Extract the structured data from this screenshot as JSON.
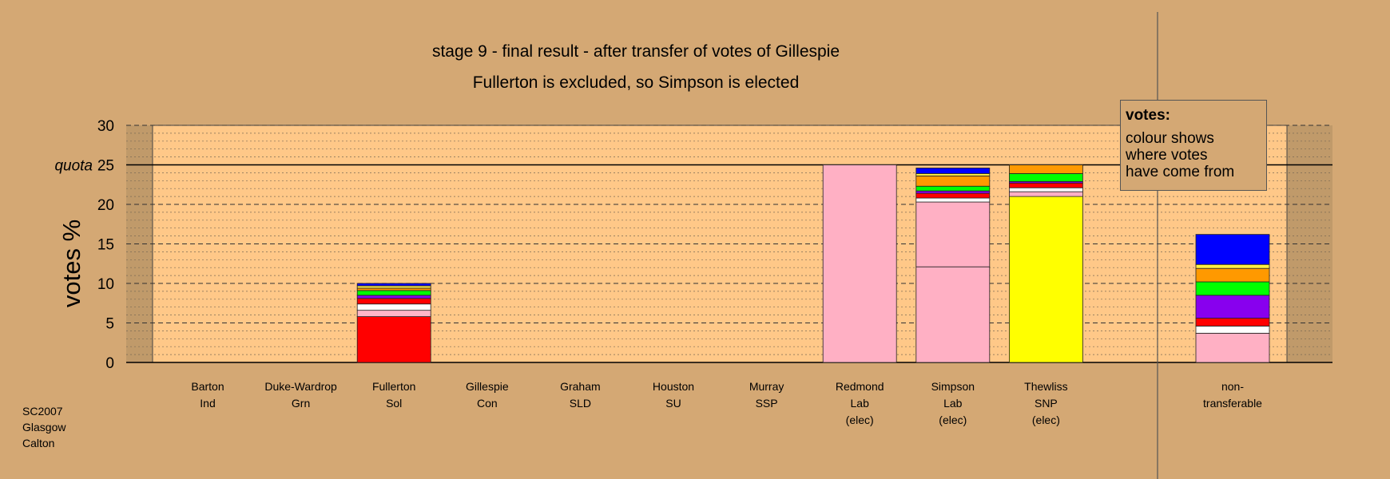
{
  "chart_data": {
    "type": "bar",
    "stacked": true,
    "title": "stage 9 - final result - after transfer of votes of Gillespie",
    "subtitle": "Fullerton is excluded, so Simpson is elected",
    "ylabel": "votes %",
    "ylim": [
      0,
      30
    ],
    "yticks": [
      "0",
      "5",
      "10",
      "15",
      "20",
      "25",
      "30"
    ],
    "quota": 25,
    "quota_label": "quota",
    "grid": true,
    "legend_position": "top-right",
    "categories": [
      {
        "lines": [
          "Barton",
          "Ind"
        ],
        "segments": []
      },
      {
        "lines": [
          "Duke-Wardrop",
          "Grn"
        ],
        "segments": []
      },
      {
        "lines": [
          "Fullerton",
          "Sol"
        ],
        "segments": [
          {
            "value": 5.8,
            "color": "#ff0000"
          },
          {
            "value": 0.8,
            "color": "#ffb6c8"
          },
          {
            "value": 0.8,
            "color": "#ffffff"
          },
          {
            "value": 0.7,
            "color": "#ff0000"
          },
          {
            "value": 0.4,
            "color": "#8800ee"
          },
          {
            "value": 0.6,
            "color": "#00ff00"
          },
          {
            "value": 0.3,
            "color": "#ff9900"
          },
          {
            "value": 0.3,
            "color": "#ffee44"
          },
          {
            "value": 0.3,
            "color": "#0000ff"
          }
        ]
      },
      {
        "lines": [
          "Gillespie",
          "Con"
        ],
        "segments": []
      },
      {
        "lines": [
          "Graham",
          "SLD"
        ],
        "segments": []
      },
      {
        "lines": [
          "Houston",
          "SU"
        ],
        "segments": []
      },
      {
        "lines": [
          "Murray",
          "SSP"
        ],
        "segments": []
      },
      {
        "lines": [
          "Redmond",
          "Lab",
          "(elec)"
        ],
        "segments": [
          {
            "value": 25.0,
            "color": "#ffb0c4"
          }
        ]
      },
      {
        "lines": [
          "Simpson",
          "Lab",
          "(elec)"
        ],
        "segments": [
          {
            "value": 12.1,
            "color": "#ffb0c4"
          },
          {
            "value": 8.2,
            "color": "#ffb0c4"
          },
          {
            "value": 0.5,
            "color": "#ffffff"
          },
          {
            "value": 0.6,
            "color": "#ff0000"
          },
          {
            "value": 0.3,
            "color": "#8800ee"
          },
          {
            "value": 0.6,
            "color": "#00ff00"
          },
          {
            "value": 1.3,
            "color": "#ff9900"
          },
          {
            "value": 0.3,
            "color": "#ffee44"
          },
          {
            "value": 0.7,
            "color": "#0000ff"
          }
        ]
      },
      {
        "lines": [
          "Thewliss",
          "SNP",
          "(elec)"
        ],
        "segments": [
          {
            "value": 21.0,
            "color": "#ffff00"
          },
          {
            "value": 0.6,
            "color": "#ffb0c4"
          },
          {
            "value": 0.5,
            "color": "#ffffff"
          },
          {
            "value": 0.6,
            "color": "#ff0000"
          },
          {
            "value": 0.2,
            "color": "#8800ee"
          },
          {
            "value": 1.0,
            "color": "#00ff00"
          },
          {
            "value": 1.1,
            "color": "#ff9900"
          }
        ]
      },
      {
        "lines": [
          "non-",
          "transferable"
        ],
        "separate": true,
        "segments": [
          {
            "value": 3.7,
            "color": "#ffb0c4"
          },
          {
            "value": 0.9,
            "color": "#ffffff"
          },
          {
            "value": 1.0,
            "color": "#ff0000"
          },
          {
            "value": 2.9,
            "color": "#8800ee"
          },
          {
            "value": 1.7,
            "color": "#00ff00"
          },
          {
            "value": 1.7,
            "color": "#ff9900"
          },
          {
            "value": 0.5,
            "color": "#ffee44"
          },
          {
            "value": 3.8,
            "color": "#0000ff"
          }
        ]
      }
    ]
  },
  "legend": {
    "title": "votes:",
    "lines": [
      "colour shows",
      "where votes",
      "have come from"
    ]
  },
  "credit": [
    "SC2007",
    "Glasgow",
    "Calton"
  ]
}
